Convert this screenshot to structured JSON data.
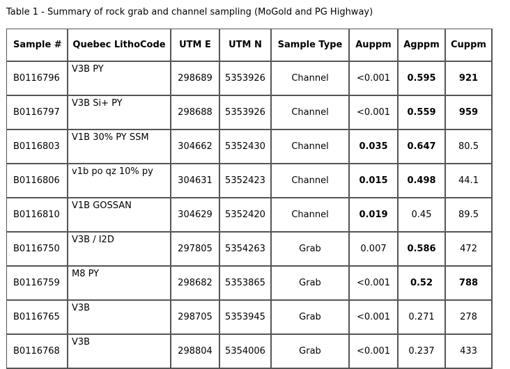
{
  "caption": "Table 1 - Summary of rock grab and channel sampling (MoGold and PG Highway)",
  "headers": {
    "sample": "Sample #",
    "litho": "Quebec LithoCode",
    "utme": "UTM E",
    "utmn": "UTM N",
    "type": "Sample Type",
    "au": "Auppm",
    "ag": "Agppm",
    "cu": "Cuppm"
  },
  "rows": [
    {
      "sample": "B0116796",
      "litho": "V3B PY",
      "utme": "298689",
      "utmn": "5353926",
      "type": "Channel",
      "au": "<0.001",
      "ag": "0.595",
      "cu": "921",
      "au_bold": false,
      "ag_bold": true,
      "cu_bold": true
    },
    {
      "sample": "B0116797",
      "litho": "V3B Si+ PY",
      "utme": "298688",
      "utmn": "5353926",
      "type": "Channel",
      "au": "<0.001",
      "ag": "0.559",
      "cu": "959",
      "au_bold": false,
      "ag_bold": true,
      "cu_bold": true
    },
    {
      "sample": "B0116803",
      "litho": "V1B 30% PY SSM",
      "utme": "304662",
      "utmn": "5352430",
      "type": "Channel",
      "au": "0.035",
      "ag": "0.647",
      "cu": "80.5",
      "au_bold": true,
      "ag_bold": true,
      "cu_bold": false
    },
    {
      "sample": "B0116806",
      "litho": "v1b po qz 10% py",
      "utme": "304631",
      "utmn": "5352423",
      "type": "Channel",
      "au": "0.015",
      "ag": "0.498",
      "cu": "44.1",
      "au_bold": true,
      "ag_bold": true,
      "cu_bold": false
    },
    {
      "sample": "B0116810",
      "litho": "V1B GOSSAN",
      "utme": "304629",
      "utmn": "5352420",
      "type": "Channel",
      "au": "0.019",
      "ag": "0.45",
      "cu": "89.5",
      "au_bold": true,
      "ag_bold": false,
      "cu_bold": false
    },
    {
      "sample": "B0116750",
      "litho": "V3B / I2D",
      "utme": "297805",
      "utmn": "5354263",
      "type": "Grab",
      "au": "0.007",
      "ag": "0.586",
      "cu": "472",
      "au_bold": false,
      "ag_bold": true,
      "cu_bold": false
    },
    {
      "sample": "B0116759",
      "litho": "M8 PY",
      "utme": "298682",
      "utmn": "5353865",
      "type": "Grab",
      "au": "<0.001",
      "ag": "0.52",
      "cu": "788",
      "au_bold": false,
      "ag_bold": true,
      "cu_bold": true
    },
    {
      "sample": "B0116765",
      "litho": "V3B",
      "utme": "298705",
      "utmn": "5353945",
      "type": "Grab",
      "au": "<0.001",
      "ag": "0.271",
      "cu": "278",
      "au_bold": false,
      "ag_bold": false,
      "cu_bold": false
    },
    {
      "sample": "B0116768",
      "litho": "V3B",
      "utme": "298804",
      "utmn": "5354006",
      "type": "Grab",
      "au": "<0.001",
      "ag": "0.237",
      "cu": "433",
      "au_bold": false,
      "ag_bold": false,
      "cu_bold": false
    }
  ]
}
